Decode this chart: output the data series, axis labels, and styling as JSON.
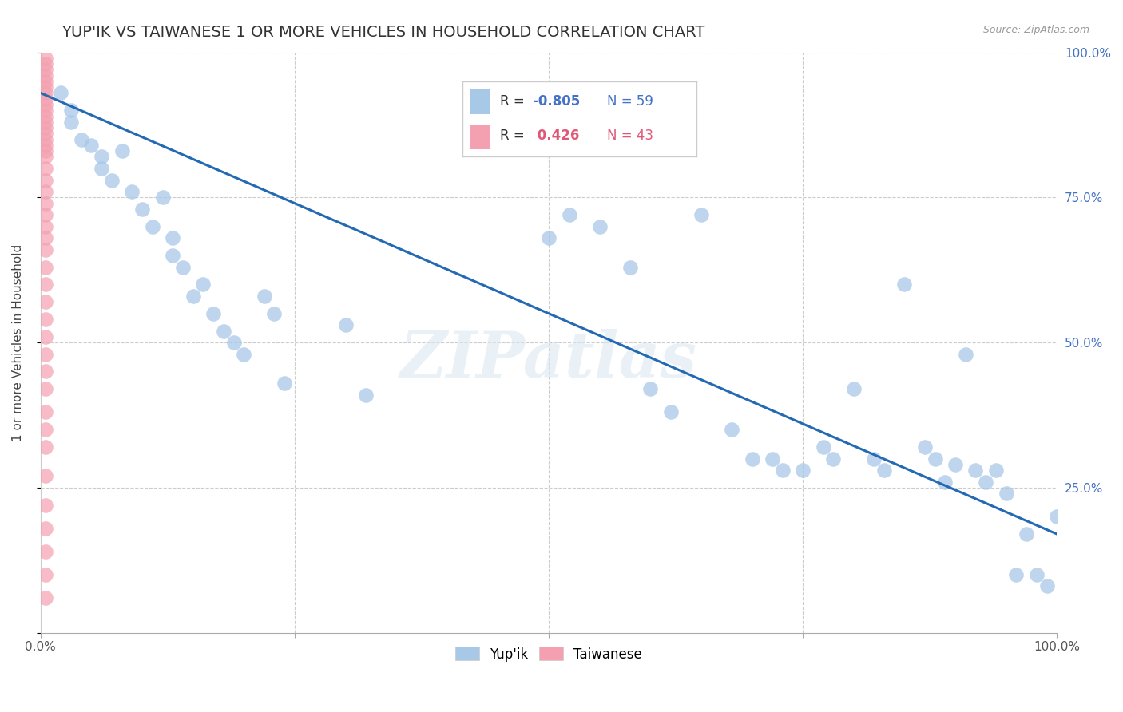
{
  "title": "YUP'IK VS TAIWANESE 1 OR MORE VEHICLES IN HOUSEHOLD CORRELATION CHART",
  "source_text": "Source: ZipAtlas.com",
  "ylabel": "1 or more Vehicles in Household",
  "xlim": [
    0,
    1.0
  ],
  "ylim": [
    0,
    1.0
  ],
  "xtick_vals": [
    0.0,
    0.25,
    0.5,
    0.75,
    1.0
  ],
  "xtick_labels": [
    "0.0%",
    "",
    "",
    "",
    "100.0%"
  ],
  "right_ytick_labels": [
    "100.0%",
    "75.0%",
    "50.0%",
    "25.0%"
  ],
  "right_ytick_vals": [
    1.0,
    0.75,
    0.5,
    0.25
  ],
  "yupik_color": "#a8c8e8",
  "taiwanese_color": "#f4a0b0",
  "trend_color": "#2469b3",
  "legend_R_yupik": "-0.805",
  "legend_N_yupik": "59",
  "legend_R_taiwanese": "0.426",
  "legend_N_taiwanese": "43",
  "watermark": "ZIPatlas",
  "yupik_x": [
    0.02,
    0.03,
    0.03,
    0.04,
    0.05,
    0.06,
    0.06,
    0.07,
    0.08,
    0.09,
    0.1,
    0.11,
    0.12,
    0.13,
    0.13,
    0.14,
    0.15,
    0.16,
    0.17,
    0.18,
    0.19,
    0.2,
    0.22,
    0.23,
    0.24,
    0.3,
    0.32,
    0.5,
    0.52,
    0.55,
    0.58,
    0.6,
    0.62,
    0.65,
    0.68,
    0.7,
    0.72,
    0.73,
    0.75,
    0.77,
    0.78,
    0.8,
    0.82,
    0.83,
    0.85,
    0.87,
    0.88,
    0.89,
    0.9,
    0.91,
    0.92,
    0.93,
    0.94,
    0.95,
    0.96,
    0.97,
    0.98,
    0.99,
    1.0
  ],
  "yupik_y": [
    0.93,
    0.9,
    0.88,
    0.85,
    0.84,
    0.82,
    0.8,
    0.78,
    0.83,
    0.76,
    0.73,
    0.7,
    0.75,
    0.68,
    0.65,
    0.63,
    0.58,
    0.6,
    0.55,
    0.52,
    0.5,
    0.48,
    0.58,
    0.55,
    0.43,
    0.53,
    0.41,
    0.68,
    0.72,
    0.7,
    0.63,
    0.42,
    0.38,
    0.72,
    0.35,
    0.3,
    0.3,
    0.28,
    0.28,
    0.32,
    0.3,
    0.42,
    0.3,
    0.28,
    0.6,
    0.32,
    0.3,
    0.26,
    0.29,
    0.48,
    0.28,
    0.26,
    0.28,
    0.24,
    0.1,
    0.17,
    0.1,
    0.08,
    0.2
  ],
  "taiwanese_x": [
    0.005,
    0.005,
    0.005,
    0.005,
    0.005,
    0.005,
    0.005,
    0.005,
    0.005,
    0.005,
    0.005,
    0.005,
    0.005,
    0.005,
    0.005,
    0.005,
    0.005,
    0.005,
    0.005,
    0.005,
    0.005,
    0.005,
    0.005,
    0.005,
    0.005,
    0.005,
    0.005,
    0.005,
    0.005,
    0.005,
    0.005,
    0.005,
    0.005,
    0.005,
    0.005,
    0.005,
    0.005,
    0.005,
    0.005,
    0.005,
    0.005,
    0.005,
    0.005
  ],
  "taiwanese_y": [
    0.99,
    0.98,
    0.97,
    0.96,
    0.95,
    0.94,
    0.93,
    0.92,
    0.91,
    0.9,
    0.89,
    0.88,
    0.87,
    0.86,
    0.85,
    0.84,
    0.83,
    0.82,
    0.8,
    0.78,
    0.76,
    0.74,
    0.72,
    0.7,
    0.68,
    0.66,
    0.63,
    0.6,
    0.57,
    0.54,
    0.51,
    0.48,
    0.45,
    0.42,
    0.38,
    0.35,
    0.32,
    0.27,
    0.22,
    0.18,
    0.14,
    0.1,
    0.06
  ],
  "trend_x0": 0.0,
  "trend_y0": 0.93,
  "trend_x1": 1.0,
  "trend_y1": 0.17
}
